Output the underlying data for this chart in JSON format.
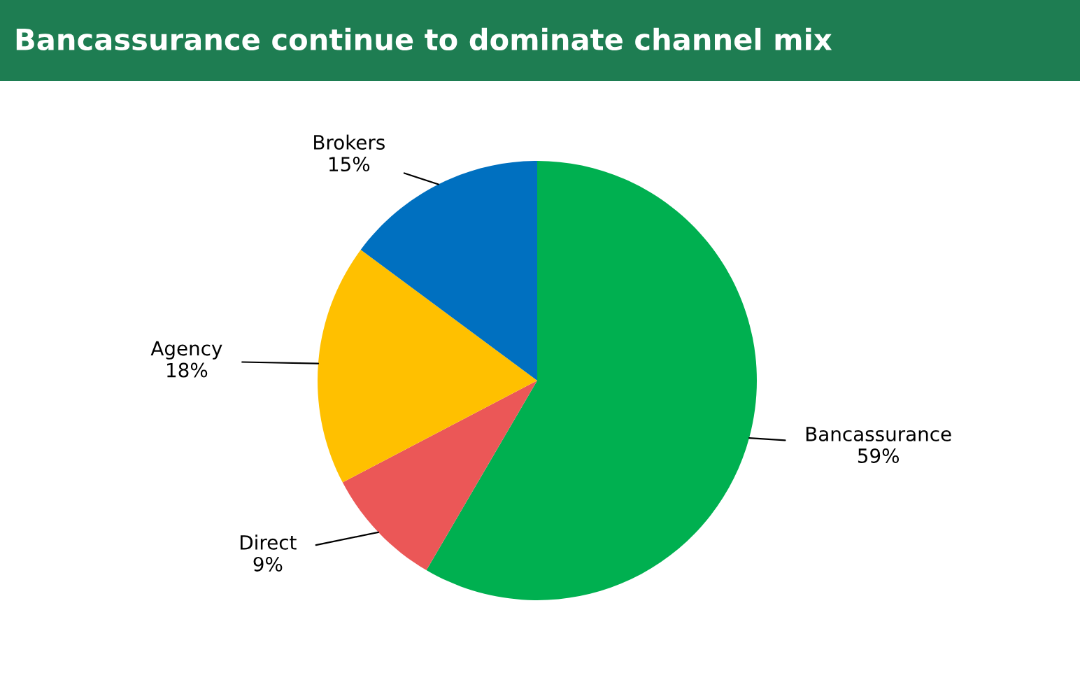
{
  "chart_data": {
    "type": "pie",
    "title": "Bancassurance continue to dominate channel mix",
    "categories": [
      "Bancassurance",
      "Direct",
      "Agency",
      "Brokers"
    ],
    "values": [
      59,
      9,
      18,
      15
    ],
    "colors": [
      "#00b050",
      "#eb5757",
      "#ffc000",
      "#0070c0"
    ],
    "value_labels": [
      "59%",
      "9%",
      "18%",
      "15%"
    ]
  }
}
